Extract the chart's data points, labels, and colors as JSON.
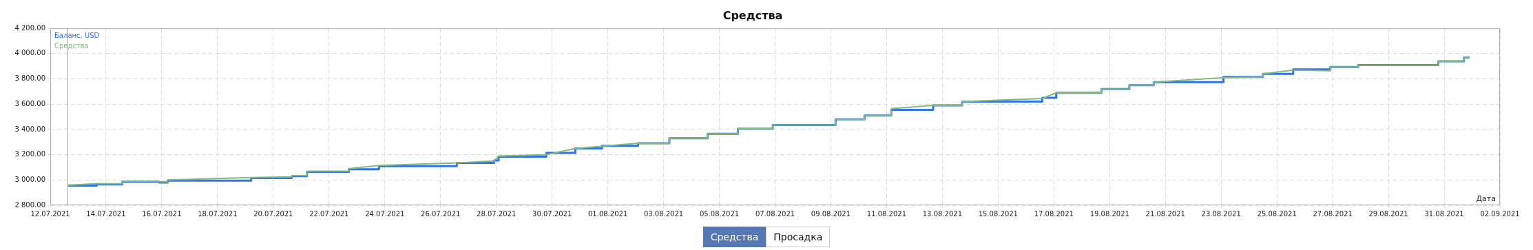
{
  "chart_data": {
    "type": "line",
    "title": "Средства",
    "xlabel": "Дата",
    "legend": "top left",
    "grid": true,
    "xlim": [
      "2021-07-12",
      "2021-09-02"
    ],
    "xticks": [
      {
        "value": "2021-07-12",
        "label": "12.07.2021"
      },
      {
        "value": "2021-07-14",
        "label": "14.07.2021"
      },
      {
        "value": "2021-07-16",
        "label": "16.07.2021"
      },
      {
        "value": "2021-07-18",
        "label": "18.07.2021"
      },
      {
        "value": "2021-07-20",
        "label": "20.07.2021"
      },
      {
        "value": "2021-07-22",
        "label": "22.07.2021"
      },
      {
        "value": "2021-07-24",
        "label": "24.07.2021"
      },
      {
        "value": "2021-07-26",
        "label": "26.07.2021"
      },
      {
        "value": "2021-07-28",
        "label": "28.07.2021"
      },
      {
        "value": "2021-07-30",
        "label": "30.07.2021"
      },
      {
        "value": "2021-08-01",
        "label": "01.08.2021"
      },
      {
        "value": "2021-08-03",
        "label": "03.08.2021"
      },
      {
        "value": "2021-08-05",
        "label": "05.08.2021"
      },
      {
        "value": "2021-08-07",
        "label": "07.08.2021"
      },
      {
        "value": "2021-08-09",
        "label": "09.08.2021"
      },
      {
        "value": "2021-08-11",
        "label": "11.08.2021"
      },
      {
        "value": "2021-08-13",
        "label": "13.08.2021"
      },
      {
        "value": "2021-08-15",
        "label": "15.08.2021"
      },
      {
        "value": "2021-08-17",
        "label": "17.08.2021"
      },
      {
        "value": "2021-08-19",
        "label": "19.08.2021"
      },
      {
        "value": "2021-08-21",
        "label": "21.08.2021"
      },
      {
        "value": "2021-08-23",
        "label": "23.08.2021"
      },
      {
        "value": "2021-08-25",
        "label": "25.08.2021"
      },
      {
        "value": "2021-08-27",
        "label": "27.08.2021"
      },
      {
        "value": "2021-08-29",
        "label": "29.08.2021"
      },
      {
        "value": "2021-08-31",
        "label": "31.08.2021"
      },
      {
        "value": "2021-09-02",
        "label": "02.09.2021"
      }
    ],
    "ylim": [
      2800,
      4200
    ],
    "yticks": [
      {
        "value": 2800,
        "label": "2 800.00"
      },
      {
        "value": 3000,
        "label": "3 000.00"
      },
      {
        "value": 3200,
        "label": "3 200.00"
      },
      {
        "value": 3400,
        "label": "3 400.00"
      },
      {
        "value": 3600,
        "label": "3 600.00"
      },
      {
        "value": 3800,
        "label": "3 800.00"
      },
      {
        "value": 4000,
        "label": "4 000.00"
      },
      {
        "value": 4200,
        "label": "4 200.00"
      }
    ],
    "ref_lines": [
      {
        "axis": "x",
        "value": "2021-07-12T15:00",
        "color": "#a0a0a0"
      }
    ],
    "annotations": [
      "Средства",
      "Просадка"
    ],
    "series": [
      {
        "name": "Баланс, USD",
        "type": "step",
        "color": "#2f74e8",
        "x": [
          "2021-07-12T15:00",
          "2021-07-13T16:00",
          "2021-07-14T14:00",
          "2021-07-15T22:00",
          "2021-07-16T05:00",
          "2021-07-19T05:00",
          "2021-07-20T16:00",
          "2021-07-21T05:00",
          "2021-07-22T17:00",
          "2021-07-23T19:00",
          "2021-07-26T14:00",
          "2021-07-27T22:00",
          "2021-07-28T02:00",
          "2021-07-29T19:00",
          "2021-07-30T20:00",
          "2021-07-31T19:00",
          "2021-08-02T02:00",
          "2021-08-03T05:00",
          "2021-08-04T14:00",
          "2021-08-05T16:00",
          "2021-08-06T22:00",
          "2021-08-09T04:00",
          "2021-08-10T05:00",
          "2021-08-11T04:00",
          "2021-08-12T16:00",
          "2021-08-13T17:00",
          "2021-08-16T14:00",
          "2021-08-17T02:00",
          "2021-08-18T17:00",
          "2021-08-19T17:00",
          "2021-08-20T14:00",
          "2021-08-23T02:00",
          "2021-08-24T12:00",
          "2021-08-25T14:00",
          "2021-08-26T22:00",
          "2021-08-27T22:00",
          "2021-08-30T19:00",
          "2021-08-31T17:00",
          "2021-08-31T22:00"
        ],
        "values": [
          2955,
          2965,
          2985,
          2980,
          2995,
          3015,
          3030,
          3065,
          3085,
          3110,
          3135,
          3155,
          3185,
          3215,
          3250,
          3270,
          3290,
          3330,
          3365,
          3405,
          3435,
          3480,
          3510,
          3555,
          3590,
          3620,
          3650,
          3690,
          3720,
          3750,
          3775,
          3815,
          3840,
          3875,
          3895,
          3910,
          3940,
          3970,
          3970
        ]
      },
      {
        "name": "Средства",
        "type": "line",
        "color": "#86b97a",
        "x": [
          "2021-07-12T15:00",
          "2021-07-13T16:00",
          "2021-07-14T14:00",
          "2021-07-14T14:00",
          "2021-07-15T22:00",
          "2021-07-15T22:00",
          "2021-07-16T05:00",
          "2021-07-16T05:00",
          "2021-07-19T05:00",
          "2021-07-20T16:00",
          "2021-07-20T16:00",
          "2021-07-21T05:00",
          "2021-07-21T05:00",
          "2021-07-22T17:00",
          "2021-07-22T17:00",
          "2021-07-23T19:00",
          "2021-07-26T14:00",
          "2021-07-27T22:00",
          "2021-07-28T02:00",
          "2021-07-29T19:00",
          "2021-07-30T20:00",
          "2021-08-02T02:00",
          "2021-08-03T05:00",
          "2021-08-03T05:00",
          "2021-08-04T14:00",
          "2021-08-04T14:00",
          "2021-08-05T16:00",
          "2021-08-05T16:00",
          "2021-08-06T22:00",
          "2021-08-06T22:00",
          "2021-08-09T04:00",
          "2021-08-09T04:00",
          "2021-08-10T05:00",
          "2021-08-10T05:00",
          "2021-08-11T04:00",
          "2021-08-11T04:00",
          "2021-08-12T16:00",
          "2021-08-13T17:00",
          "2021-08-13T17:00",
          "2021-08-16T14:00",
          "2021-08-17T02:00",
          "2021-08-18T17:00",
          "2021-08-18T17:00",
          "2021-08-19T17:00",
          "2021-08-19T17:00",
          "2021-08-20T14:00",
          "2021-08-20T14:00",
          "2021-08-23T02:00",
          "2021-08-24T12:00",
          "2021-08-24T12:00",
          "2021-08-25T14:00",
          "2021-08-26T22:00",
          "2021-08-26T22:00",
          "2021-08-27T22:00",
          "2021-08-27T22:00",
          "2021-08-30T19:00",
          "2021-08-30T19:00",
          "2021-08-31T17:00",
          "2021-08-31T17:00",
          "2021-08-31T22:00"
        ],
        "values": [
          2960,
          2970,
          2970,
          2990,
          2990,
          2985,
          2985,
          3000,
          3020,
          3025,
          3035,
          3035,
          3070,
          3070,
          3090,
          3115,
          3135,
          3150,
          3190,
          3200,
          3250,
          3290,
          3290,
          3330,
          3330,
          3365,
          3365,
          3405,
          3405,
          3435,
          3435,
          3480,
          3480,
          3510,
          3510,
          3565,
          3590,
          3590,
          3620,
          3645,
          3690,
          3690,
          3720,
          3720,
          3750,
          3750,
          3775,
          3810,
          3815,
          3840,
          3870,
          3865,
          3895,
          3895,
          3910,
          3910,
          3940,
          3940,
          3970,
          3970
        ]
      }
    ]
  }
}
